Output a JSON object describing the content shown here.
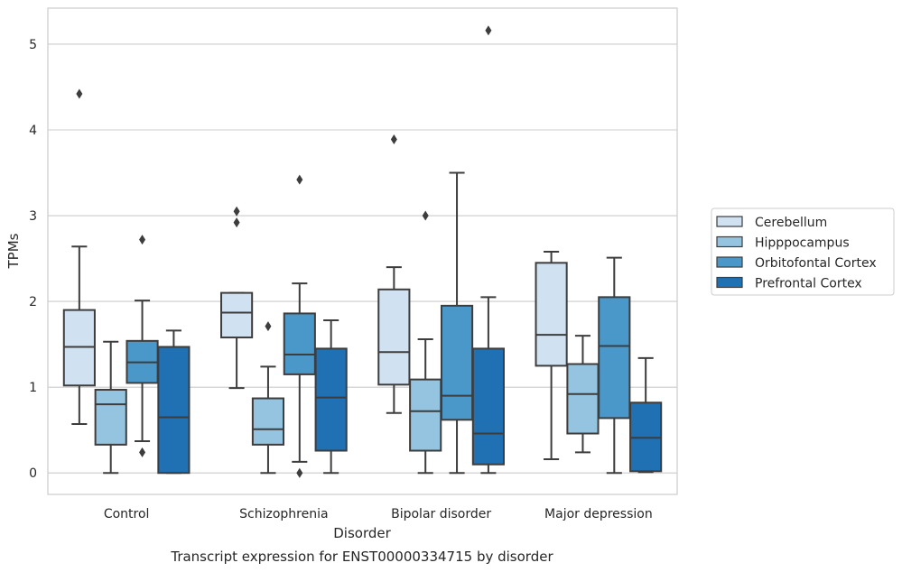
{
  "chart_data": {
    "type": "box",
    "caption": "Transcript expression for ENST00000334715 by disorder",
    "xlabel": "Disorder",
    "ylabel": "TPMs",
    "ylim": [
      -0.25,
      5.42
    ],
    "yticks": [
      0,
      1,
      2,
      3,
      4,
      5
    ],
    "grid": "horizontal",
    "legend_position": "right",
    "categories": [
      "Control",
      "Schizophrenia",
      "Bipolar disorder",
      "Major depression"
    ],
    "series": [
      {
        "name": "Cerebellum",
        "color": "#d0e1f2",
        "boxes": [
          {
            "whisker_low": 0.57,
            "q1": 1.02,
            "median": 1.47,
            "q3": 1.9,
            "whisker_high": 2.64,
            "outliers": [
              4.42
            ]
          },
          {
            "whisker_low": 0.99,
            "q1": 1.58,
            "median": 1.87,
            "q3": 2.1,
            "whisker_high": 2.1,
            "outliers": [
              2.92,
              3.05
            ]
          },
          {
            "whisker_low": 0.7,
            "q1": 1.03,
            "median": 1.41,
            "q3": 2.14,
            "whisker_high": 2.4,
            "outliers": [
              3.89
            ]
          },
          {
            "whisker_low": 0.16,
            "q1": 1.25,
            "median": 1.61,
            "q3": 2.45,
            "whisker_high": 2.58,
            "outliers": []
          }
        ]
      },
      {
        "name": "Hipppocampus",
        "color": "#94c4df",
        "boxes": [
          {
            "whisker_low": 0.0,
            "q1": 0.33,
            "median": 0.8,
            "q3": 0.97,
            "whisker_high": 1.53,
            "outliers": []
          },
          {
            "whisker_low": 0.0,
            "q1": 0.33,
            "median": 0.51,
            "q3": 0.87,
            "whisker_high": 1.24,
            "outliers": [
              1.71
            ]
          },
          {
            "whisker_low": 0.0,
            "q1": 0.26,
            "median": 0.72,
            "q3": 1.09,
            "whisker_high": 1.56,
            "outliers": [
              3.0
            ]
          },
          {
            "whisker_low": 0.24,
            "q1": 0.46,
            "median": 0.92,
            "q3": 1.27,
            "whisker_high": 1.6,
            "outliers": []
          }
        ]
      },
      {
        "name": "Orbitofontal Cortex",
        "color": "#4a98c9",
        "boxes": [
          {
            "whisker_low": 0.37,
            "q1": 1.05,
            "median": 1.29,
            "q3": 1.54,
            "whisker_high": 2.01,
            "outliers": [
              2.72,
              0.24
            ]
          },
          {
            "whisker_low": 0.13,
            "q1": 1.15,
            "median": 1.38,
            "q3": 1.86,
            "whisker_high": 2.21,
            "outliers": [
              3.42,
              0.0
            ]
          },
          {
            "whisker_low": 0.0,
            "q1": 0.62,
            "median": 0.9,
            "q3": 1.95,
            "whisker_high": 3.5,
            "outliers": []
          },
          {
            "whisker_low": 0.0,
            "q1": 0.64,
            "median": 1.48,
            "q3": 2.05,
            "whisker_high": 2.51,
            "outliers": []
          }
        ]
      },
      {
        "name": "Prefrontal Cortex",
        "color": "#2070b4",
        "boxes": [
          {
            "whisker_low": 0.0,
            "q1": 0.0,
            "median": 0.65,
            "q3": 1.47,
            "whisker_high": 1.66,
            "outliers": []
          },
          {
            "whisker_low": 0.0,
            "q1": 0.26,
            "median": 0.88,
            "q3": 1.45,
            "whisker_high": 1.78,
            "outliers": []
          },
          {
            "whisker_low": 0.0,
            "q1": 0.1,
            "median": 0.46,
            "q3": 1.45,
            "whisker_high": 2.05,
            "outliers": [
              5.16
            ]
          },
          {
            "whisker_low": 0.01,
            "q1": 0.02,
            "median": 0.41,
            "q3": 0.82,
            "whisker_high": 1.34,
            "outliers": []
          }
        ]
      }
    ]
  }
}
